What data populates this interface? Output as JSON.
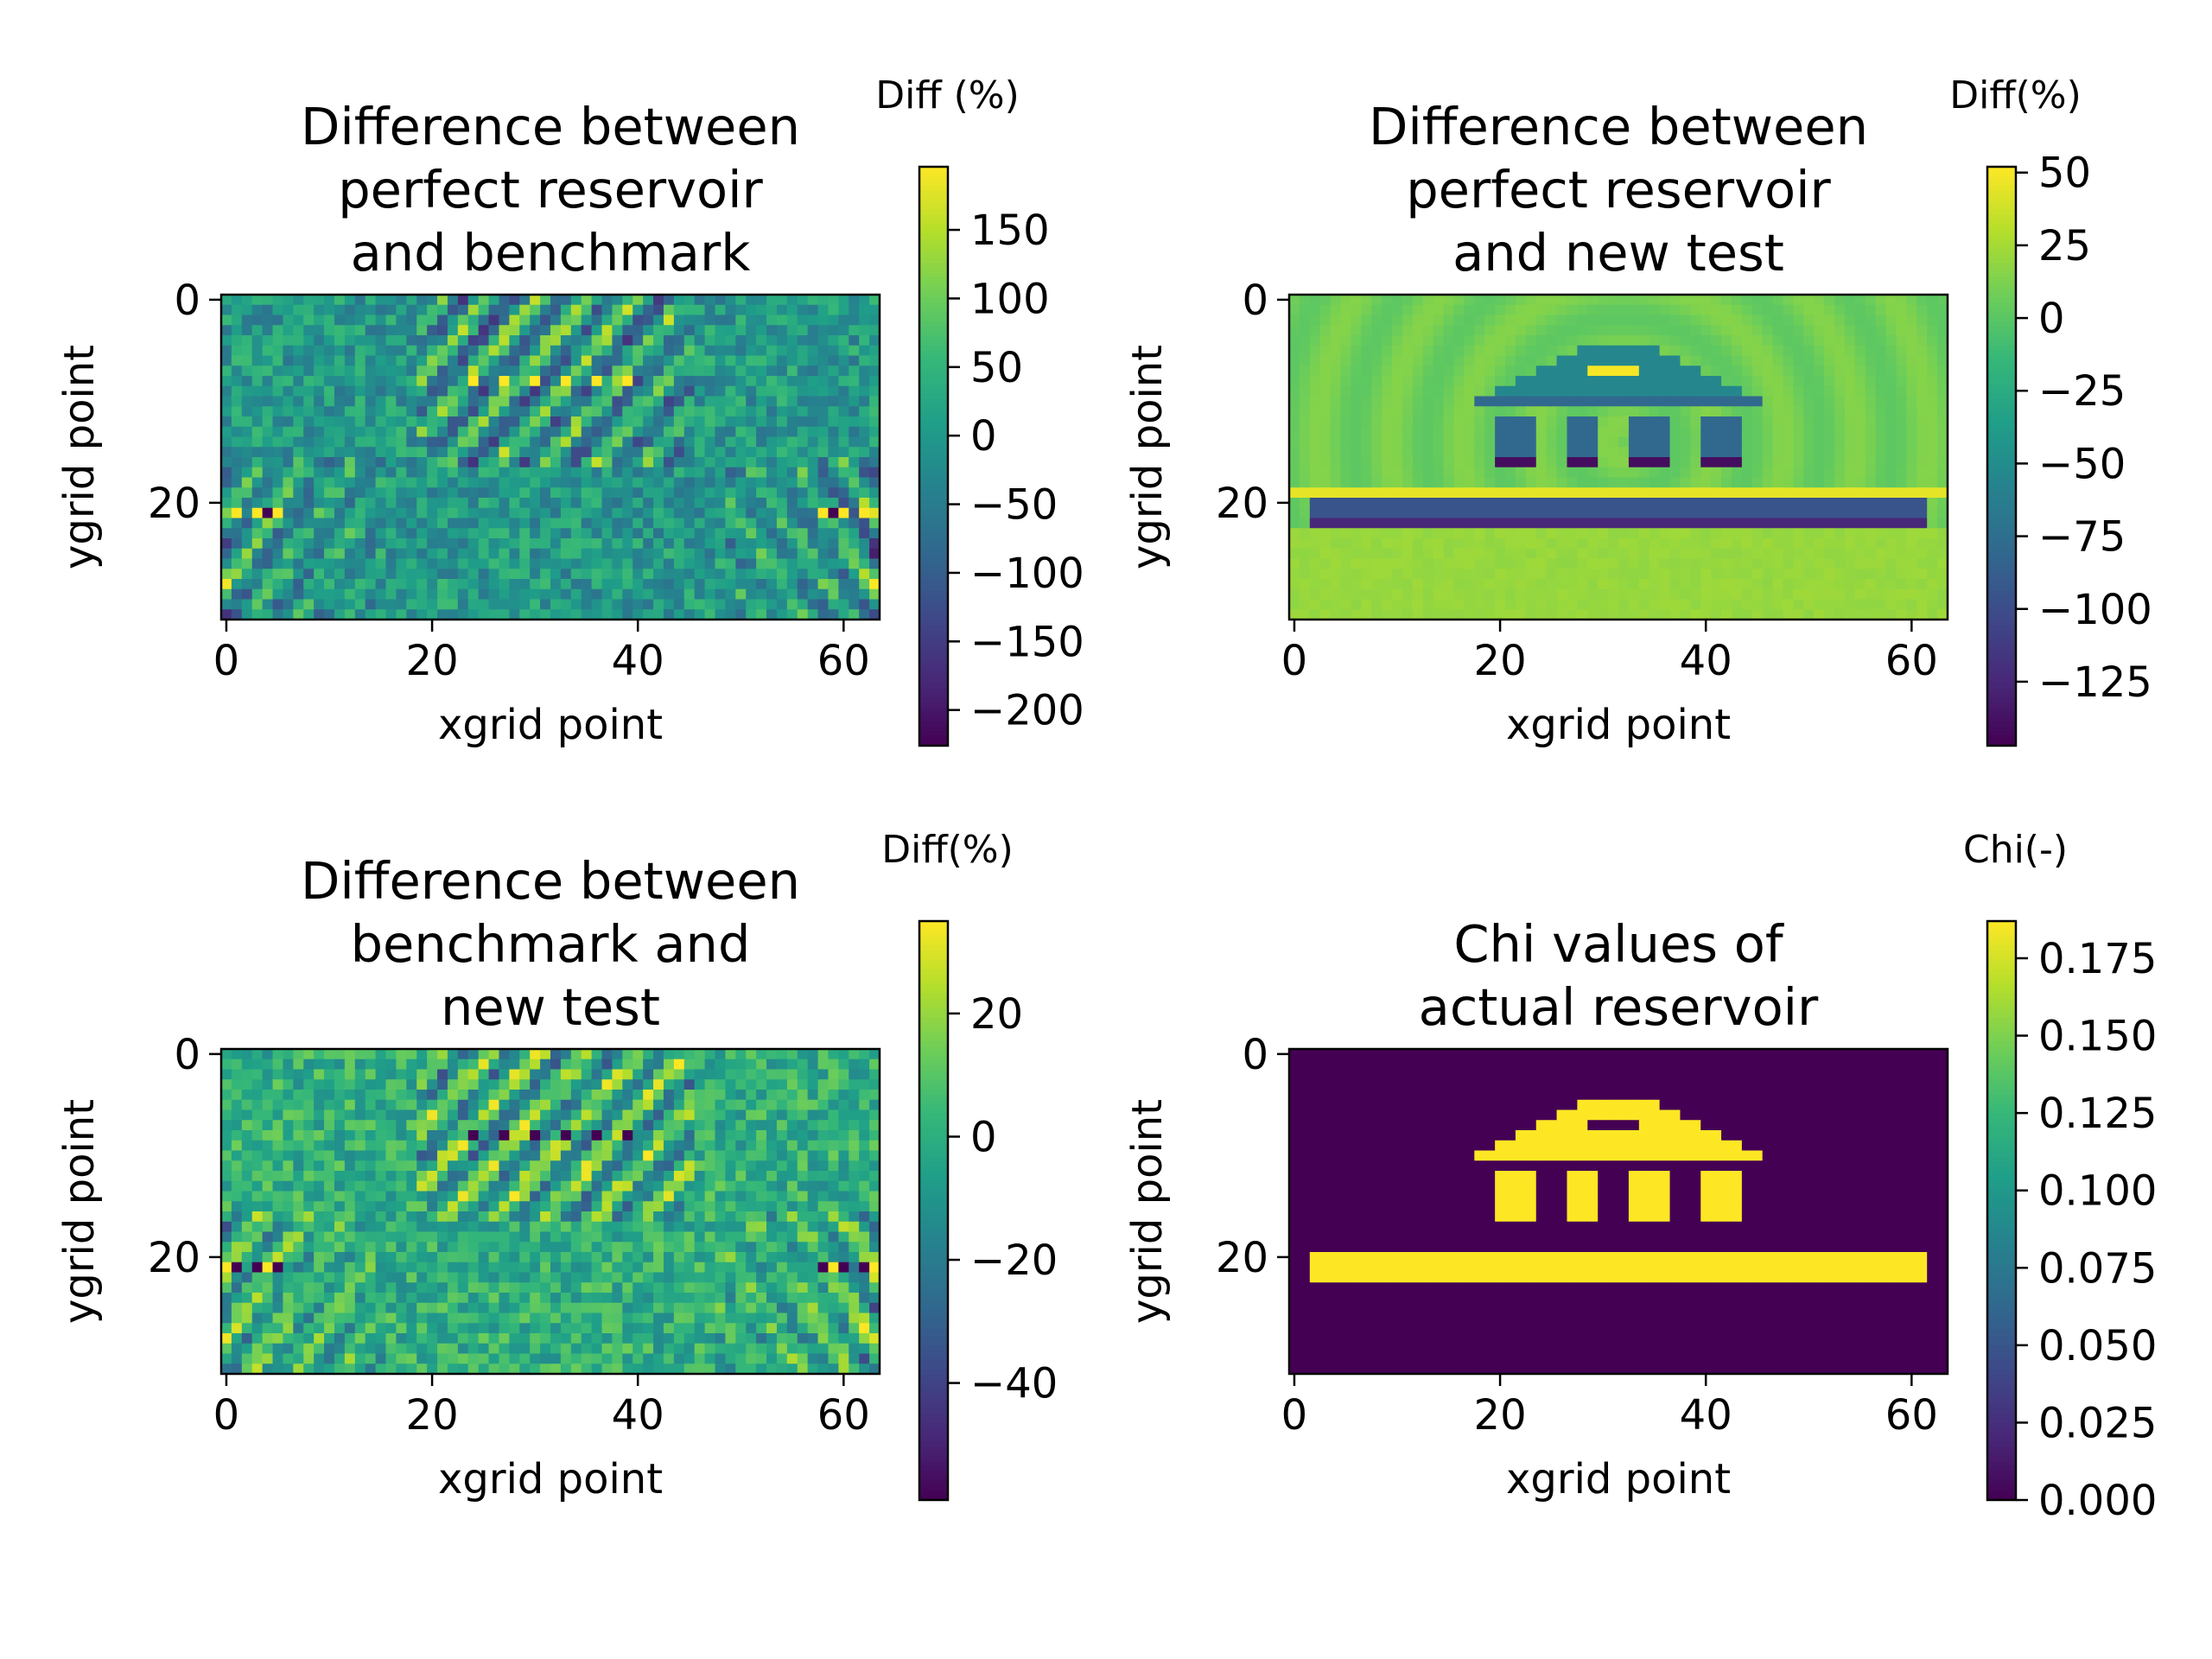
{
  "chart_data": [
    {
      "type": "heatmap",
      "title": "Difference between\nperfect reservoir\nand benchmark",
      "xlabel": "xgrid point",
      "ylabel": "ygrid point",
      "x_range": [
        0,
        63
      ],
      "y_range": [
        0,
        31
      ],
      "xticks": [
        0,
        20,
        40,
        60
      ],
      "yticks": [
        0,
        20
      ],
      "colorbar_label": "Diff (%)",
      "colorbar_ticks": [
        150,
        100,
        50,
        0,
        -50,
        -100,
        -150,
        -200
      ],
      "colorbar_tick_labels": [
        "150",
        "100",
        "50",
        "0",
        "−50",
        "−100",
        "−150",
        "−200"
      ],
      "vmin": -226,
      "vmax": 196,
      "pattern": "scattering",
      "colormap": "viridis"
    },
    {
      "type": "heatmap",
      "title": "Difference between\nperfect reservoir\nand new test",
      "xlabel": "xgrid point",
      "ylabel": "ygrid point",
      "x_range": [
        0,
        63
      ],
      "y_range": [
        0,
        31
      ],
      "xticks": [
        0,
        20,
        40,
        60
      ],
      "yticks": [
        0,
        20
      ],
      "colorbar_label": "Diff(%)",
      "colorbar_ticks": [
        50,
        25,
        0,
        -25,
        -50,
        -75,
        -100,
        -125
      ],
      "colorbar_tick_labels": [
        "50",
        "25",
        "0",
        "−25",
        "−50",
        "−75",
        "−100",
        "−125"
      ],
      "vmin": -147,
      "vmax": 52,
      "pattern": "structure-diff",
      "colormap": "viridis"
    },
    {
      "type": "heatmap",
      "title": "Difference between\nbenchmark and\nnew test",
      "xlabel": "xgrid point",
      "ylabel": "ygrid point",
      "x_range": [
        0,
        63
      ],
      "y_range": [
        0,
        31
      ],
      "xticks": [
        0,
        20,
        40,
        60
      ],
      "yticks": [
        0,
        20
      ],
      "colorbar_label": "Diff(%)",
      "colorbar_ticks": [
        20,
        0,
        -20,
        -40
      ],
      "colorbar_tick_labels": [
        "20",
        "0",
        "−20",
        "−40"
      ],
      "vmin": -59,
      "vmax": 35,
      "pattern": "scattering",
      "colormap": "viridis"
    },
    {
      "type": "heatmap",
      "title": "Chi values of\nactual reservoir",
      "xlabel": "xgrid point",
      "ylabel": "ygrid point",
      "x_range": [
        0,
        63
      ],
      "y_range": [
        0,
        31
      ],
      "xticks": [
        0,
        20,
        40,
        60
      ],
      "yticks": [
        0,
        20
      ],
      "colorbar_label": "Chi(-)",
      "colorbar_ticks": [
        0.175,
        0.15,
        0.125,
        0.1,
        0.075,
        0.05,
        0.025,
        0.0
      ],
      "colorbar_tick_labels": [
        "0.175",
        "0.150",
        "0.125",
        "0.100",
        "0.075",
        "0.050",
        "0.025",
        "0.000"
      ],
      "vmin": 0.0,
      "vmax": 0.187,
      "pattern": "structure",
      "colormap": "viridis"
    }
  ]
}
